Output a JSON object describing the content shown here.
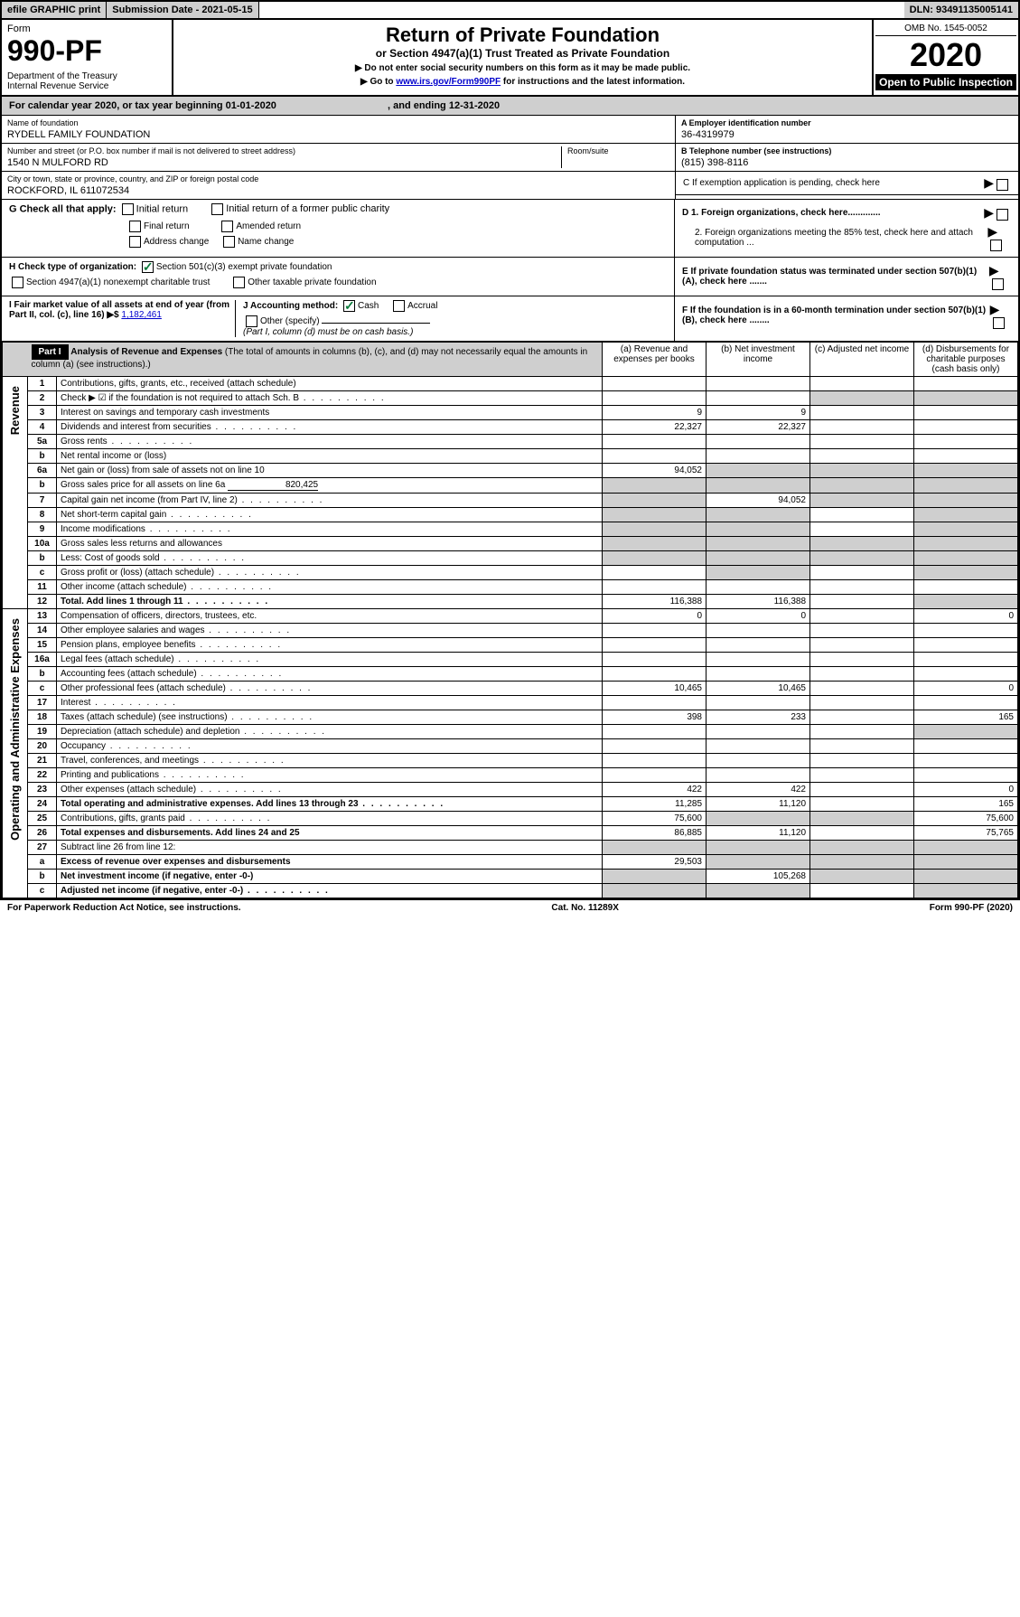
{
  "topbar": {
    "efile": "efile GRAPHIC print",
    "subdate_label": "Submission Date - ",
    "subdate": "2021-05-15",
    "dln_label": "DLN: ",
    "dln": "93491135005141"
  },
  "header": {
    "form_label": "Form",
    "form_num": "990-PF",
    "dept": "Department of the Treasury",
    "irs": "Internal Revenue Service",
    "title": "Return of Private Foundation",
    "subtitle": "or Section 4947(a)(1) Trust Treated as Private Foundation",
    "note1": "▶ Do not enter social security numbers on this form as it may be made public.",
    "note2_pre": "▶ Go to ",
    "note2_link": "www.irs.gov/Form990PF",
    "note2_post": " for instructions and the latest information.",
    "omb": "OMB No. 1545-0052",
    "year": "2020",
    "open": "Open to Public Inspection"
  },
  "calyear": {
    "pre": "For calendar year 2020, or tax year beginning ",
    "begin": "01-01-2020",
    "mid": " , and ending ",
    "end": "12-31-2020"
  },
  "info": {
    "name_label": "Name of foundation",
    "name": "RYDELL FAMILY FOUNDATION",
    "addr_label": "Number and street (or P.O. box number if mail is not delivered to street address)",
    "addr": "1540 N MULFORD RD",
    "room_label": "Room/suite",
    "city_label": "City or town, state or province, country, and ZIP or foreign postal code",
    "city": "ROCKFORD, IL  611072534",
    "ein_label": "A Employer identification number",
    "ein": "36-4319979",
    "tel_label": "B Telephone number (see instructions)",
    "tel": "(815) 398-8116",
    "c_label": "C If exemption application is pending, check here",
    "d1": "D 1. Foreign organizations, check here.............",
    "d2": "2. Foreign organizations meeting the 85% test, check here and attach computation ...",
    "e_label": "E  If private foundation status was terminated under section 507(b)(1)(A), check here .......",
    "f_label": "F  If the foundation is in a 60-month termination under section 507(b)(1)(B), check here ........"
  },
  "g": {
    "label": "G Check all that apply:",
    "opts": [
      "Initial return",
      "Initial return of a former public charity",
      "Final return",
      "Amended return",
      "Address change",
      "Name change"
    ]
  },
  "h": {
    "label": "H Check type of organization:",
    "opt1": "Section 501(c)(3) exempt private foundation",
    "opt2": "Section 4947(a)(1) nonexempt charitable trust",
    "opt3": "Other taxable private foundation"
  },
  "i": {
    "label": "I Fair market value of all assets at end of year (from Part II, col. (c), line 16) ▶$ ",
    "val": "1,182,461"
  },
  "j": {
    "label": "J Accounting method:",
    "cash": "Cash",
    "accrual": "Accrual",
    "other": "Other (specify)",
    "note": "(Part I, column (d) must be on cash basis.)"
  },
  "part1": {
    "label": "Part I",
    "title": "Analysis of Revenue and Expenses",
    "note": " (The total of amounts in columns (b), (c), and (d) may not necessarily equal the amounts in column (a) (see instructions).)",
    "cols": {
      "a": "(a)   Revenue and expenses per books",
      "b": "(b)  Net investment income",
      "c": "(c)  Adjusted net income",
      "d": "(d)  Disbursements for charitable purposes (cash basis only)"
    }
  },
  "side": {
    "rev": "Revenue",
    "exp": "Operating and Administrative Expenses"
  },
  "rows": [
    {
      "n": "1",
      "d": "Contributions, gifts, grants, etc., received (attach schedule)",
      "a": "",
      "b": "",
      "c": "",
      "dd": ""
    },
    {
      "n": "2",
      "d": "Check ▶ ☑ if the foundation is not required to attach Sch. B",
      "a": "",
      "b": "",
      "c": "",
      "dd": "",
      "shade_cd": true,
      "dots": true
    },
    {
      "n": "3",
      "d": "Interest on savings and temporary cash investments",
      "a": "9",
      "b": "9",
      "c": "",
      "dd": ""
    },
    {
      "n": "4",
      "d": "Dividends and interest from securities",
      "a": "22,327",
      "b": "22,327",
      "c": "",
      "dd": "",
      "dots": true
    },
    {
      "n": "5a",
      "d": "Gross rents",
      "a": "",
      "b": "",
      "c": "",
      "dd": "",
      "dots": true
    },
    {
      "n": "b",
      "d": "Net rental income or (loss)",
      "a": "",
      "b": "",
      "c": "",
      "dd": "",
      "underline": true
    },
    {
      "n": "6a",
      "d": "Net gain or (loss) from sale of assets not on line 10",
      "a": "94,052",
      "b": "",
      "c": "",
      "dd": "",
      "shade_bcd": true
    },
    {
      "n": "b",
      "d": "Gross sales price for all assets on line 6a",
      "a": "",
      "b": "",
      "c": "",
      "dd": "",
      "val": "820,425",
      "shade_all": true
    },
    {
      "n": "7",
      "d": "Capital gain net income (from Part IV, line 2)",
      "a": "",
      "b": "94,052",
      "c": "",
      "dd": "",
      "dots": true,
      "shade_acd": true
    },
    {
      "n": "8",
      "d": "Net short-term capital gain",
      "a": "",
      "b": "",
      "c": "",
      "dd": "",
      "dots": true,
      "shade_abd": true
    },
    {
      "n": "9",
      "d": "Income modifications",
      "a": "",
      "b": "",
      "c": "",
      "dd": "",
      "dots": true,
      "shade_abd": true
    },
    {
      "n": "10a",
      "d": "Gross sales less returns and allowances",
      "a": "",
      "b": "",
      "c": "",
      "dd": "",
      "shade_all": true
    },
    {
      "n": "b",
      "d": "Less: Cost of goods sold",
      "a": "",
      "b": "",
      "c": "",
      "dd": "",
      "dots": true,
      "shade_all": true
    },
    {
      "n": "c",
      "d": "Gross profit or (loss) (attach schedule)",
      "a": "",
      "b": "",
      "c": "",
      "dd": "",
      "dots": true,
      "shade_bd": true
    },
    {
      "n": "11",
      "d": "Other income (attach schedule)",
      "a": "",
      "b": "",
      "c": "",
      "dd": "",
      "dots": true
    },
    {
      "n": "12",
      "d": "Total. Add lines 1 through 11",
      "a": "116,388",
      "b": "116,388",
      "c": "",
      "dd": "",
      "bold": true,
      "dots": true,
      "shade_d": true
    }
  ],
  "exp_rows": [
    {
      "n": "13",
      "d": "Compensation of officers, directors, trustees, etc.",
      "a": "0",
      "b": "0",
      "c": "",
      "dd": "0"
    },
    {
      "n": "14",
      "d": "Other employee salaries and wages",
      "a": "",
      "b": "",
      "c": "",
      "dd": "",
      "dots": true
    },
    {
      "n": "15",
      "d": "Pension plans, employee benefits",
      "a": "",
      "b": "",
      "c": "",
      "dd": "",
      "dots": true
    },
    {
      "n": "16a",
      "d": "Legal fees (attach schedule)",
      "a": "",
      "b": "",
      "c": "",
      "dd": "",
      "dots": true
    },
    {
      "n": "b",
      "d": "Accounting fees (attach schedule)",
      "a": "",
      "b": "",
      "c": "",
      "dd": "",
      "dots": true
    },
    {
      "n": "c",
      "d": "Other professional fees (attach schedule)",
      "a": "10,465",
      "b": "10,465",
      "c": "",
      "dd": "0",
      "dots": true
    },
    {
      "n": "17",
      "d": "Interest",
      "a": "",
      "b": "",
      "c": "",
      "dd": "",
      "dots": true
    },
    {
      "n": "18",
      "d": "Taxes (attach schedule) (see instructions)",
      "a": "398",
      "b": "233",
      "c": "",
      "dd": "165",
      "dots": true
    },
    {
      "n": "19",
      "d": "Depreciation (attach schedule) and depletion",
      "a": "",
      "b": "",
      "c": "",
      "dd": "",
      "dots": true,
      "shade_d": true
    },
    {
      "n": "20",
      "d": "Occupancy",
      "a": "",
      "b": "",
      "c": "",
      "dd": "",
      "dots": true
    },
    {
      "n": "21",
      "d": "Travel, conferences, and meetings",
      "a": "",
      "b": "",
      "c": "",
      "dd": "",
      "dots": true
    },
    {
      "n": "22",
      "d": "Printing and publications",
      "a": "",
      "b": "",
      "c": "",
      "dd": "",
      "dots": true
    },
    {
      "n": "23",
      "d": "Other expenses (attach schedule)",
      "a": "422",
      "b": "422",
      "c": "",
      "dd": "0",
      "dots": true
    },
    {
      "n": "24",
      "d": "Total operating and administrative expenses. Add lines 13 through 23",
      "a": "11,285",
      "b": "11,120",
      "c": "",
      "dd": "165",
      "bold": true,
      "dots": true
    },
    {
      "n": "25",
      "d": "Contributions, gifts, grants paid",
      "a": "75,600",
      "b": "",
      "c": "",
      "dd": "75,600",
      "dots": true,
      "shade_bc": true
    },
    {
      "n": "26",
      "d": "Total expenses and disbursements. Add lines 24 and 25",
      "a": "86,885",
      "b": "11,120",
      "c": "",
      "dd": "75,765",
      "bold": true
    },
    {
      "n": "27",
      "d": "Subtract line 26 from line 12:",
      "a": "",
      "b": "",
      "c": "",
      "dd": "",
      "shade_all": true
    },
    {
      "n": "a",
      "d": "Excess of revenue over expenses and disbursements",
      "a": "29,503",
      "b": "",
      "c": "",
      "dd": "",
      "bold": true,
      "shade_bcd": true
    },
    {
      "n": "b",
      "d": "Net investment income (if negative, enter -0-)",
      "a": "",
      "b": "105,268",
      "c": "",
      "dd": "",
      "bold": true,
      "shade_acd": true
    },
    {
      "n": "c",
      "d": "Adjusted net income (if negative, enter -0-)",
      "a": "",
      "b": "",
      "c": "",
      "dd": "",
      "bold": true,
      "dots": true,
      "shade_abd": true
    }
  ],
  "footer": {
    "left": "For Paperwork Reduction Act Notice, see instructions.",
    "mid": "Cat. No. 11289X",
    "right": "Form 990-PF (2020)"
  }
}
